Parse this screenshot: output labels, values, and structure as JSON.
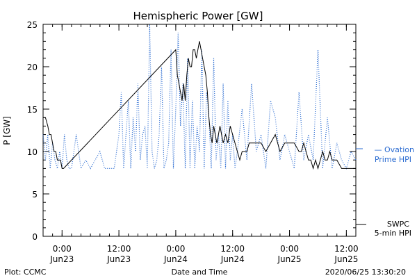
{
  "chart_data": {
    "type": "line",
    "title": "Hemispheric Power [GW]",
    "xlabel": "Date and Time",
    "ylabel": "P [GW]",
    "ylim": [
      0,
      25
    ],
    "yticks": [
      0,
      5,
      10,
      15,
      20,
      25
    ],
    "grid": false,
    "xlim": [
      "2020-06-22 20:00",
      "2020-06-25 14:00"
    ],
    "xticks": [
      {
        "t": "2020-06-23 00:00",
        "time": "0:00",
        "date": "Jun23"
      },
      {
        "t": "2020-06-23 12:00",
        "time": "12:00",
        "date": "Jun23"
      },
      {
        "t": "2020-06-24 00:00",
        "time": "0:00",
        "date": "Jun24"
      },
      {
        "t": "2020-06-24 12:00",
        "time": "12:00",
        "date": "Jun24"
      },
      {
        "t": "2020-06-25 00:00",
        "time": "0:00",
        "date": "Jun25"
      },
      {
        "t": "2020-06-25 12:00",
        "time": "12:00",
        "date": "Jun25"
      }
    ],
    "series": [
      {
        "name": "SWPC 5-min HPI",
        "legend_lines": [
          "SWPC",
          "5-min HPI"
        ],
        "color": "#000000",
        "style": "solid",
        "x": [
          "2020-06-22 20:00",
          "2020-06-22 20:30",
          "2020-06-22 21:00",
          "2020-06-22 21:20",
          "2020-06-22 21:40",
          "2020-06-22 22:00",
          "2020-06-22 22:20",
          "2020-06-22 22:40",
          "2020-06-22 23:00",
          "2020-06-22 23:20",
          "2020-06-22 23:40",
          "2020-06-23 00:00",
          "2020-06-23 00:20",
          "2020-06-24 00:00",
          "2020-06-24 00:20",
          "2020-06-24 00:40",
          "2020-06-24 01:00",
          "2020-06-24 01:20",
          "2020-06-24 01:40",
          "2020-06-24 02:00",
          "2020-06-24 02:20",
          "2020-06-24 02:40",
          "2020-06-24 03:00",
          "2020-06-24 03:20",
          "2020-06-24 03:40",
          "2020-06-24 04:00",
          "2020-06-24 04:20",
          "2020-06-24 04:40",
          "2020-06-24 05:00",
          "2020-06-24 05:20",
          "2020-06-24 05:40",
          "2020-06-24 06:00",
          "2020-06-24 06:20",
          "2020-06-24 06:40",
          "2020-06-24 07:00",
          "2020-06-24 07:20",
          "2020-06-24 07:40",
          "2020-06-24 08:00",
          "2020-06-24 08:20",
          "2020-06-24 08:40",
          "2020-06-24 09:00",
          "2020-06-24 09:20",
          "2020-06-24 09:40",
          "2020-06-24 10:00",
          "2020-06-24 10:30",
          "2020-06-24 11:00",
          "2020-06-24 11:30",
          "2020-06-24 12:00",
          "2020-06-24 12:30",
          "2020-06-24 13:00",
          "2020-06-24 13:30",
          "2020-06-24 14:00",
          "2020-06-24 14:30",
          "2020-06-24 15:00",
          "2020-06-24 15:30",
          "2020-06-24 16:00",
          "2020-06-24 17:00",
          "2020-06-24 18:00",
          "2020-06-24 19:00",
          "2020-06-24 20:00",
          "2020-06-24 21:00",
          "2020-06-24 22:00",
          "2020-06-24 23:00",
          "2020-06-25 00:00",
          "2020-06-25 01:00",
          "2020-06-25 02:00",
          "2020-06-25 02:30",
          "2020-06-25 03:00",
          "2020-06-25 03:30",
          "2020-06-25 04:00",
          "2020-06-25 04:30",
          "2020-06-25 05:00",
          "2020-06-25 05:30",
          "2020-06-25 06:00",
          "2020-06-25 06:30",
          "2020-06-25 07:00",
          "2020-06-25 07:30",
          "2020-06-25 08:00",
          "2020-06-25 08:30",
          "2020-06-25 09:00",
          "2020-06-25 10:00",
          "2020-06-25 11:00",
          "2020-06-25 12:00",
          "2020-06-25 13:00",
          "2020-06-25 14:00"
        ],
        "y": [
          14,
          14,
          13,
          12,
          12,
          11,
          10,
          10,
          9,
          9,
          9,
          8,
          8,
          22,
          19,
          18,
          17,
          16,
          18,
          16,
          19,
          21,
          20,
          20,
          22,
          22,
          21,
          22,
          23,
          22,
          21,
          20,
          19,
          17,
          14,
          12,
          11,
          13,
          12,
          11,
          12,
          13,
          12,
          11,
          12,
          11,
          13,
          12,
          11,
          10,
          9,
          10,
          10,
          10,
          11,
          11,
          11,
          11,
          10,
          11,
          12,
          10,
          11,
          11,
          11,
          10,
          10,
          11,
          10,
          9,
          9,
          8,
          9,
          8,
          9,
          10,
          9,
          9,
          10,
          9,
          9,
          8,
          8,
          8,
          8
        ]
      },
      {
        "name": "Ovation Prime HPI",
        "legend_lines": [
          "— Ovation",
          "Prime HPI"
        ],
        "color": "#2a6bd1",
        "style": "dotted",
        "x": [
          "2020-06-22 20:00",
          "2020-06-22 20:30",
          "2020-06-22 21:00",
          "2020-06-22 21:30",
          "2020-06-22 22:00",
          "2020-06-22 22:30",
          "2020-06-22 23:00",
          "2020-06-22 23:30",
          "2020-06-23 00:00",
          "2020-06-23 00:30",
          "2020-06-23 01:00",
          "2020-06-23 01:30",
          "2020-06-23 02:00",
          "2020-06-23 03:00",
          "2020-06-23 04:00",
          "2020-06-23 05:00",
          "2020-06-23 06:00",
          "2020-06-23 07:00",
          "2020-06-23 08:00",
          "2020-06-23 09:00",
          "2020-06-23 10:00",
          "2020-06-23 11:00",
          "2020-06-23 12:00",
          "2020-06-23 12:30",
          "2020-06-23 13:00",
          "2020-06-23 13:30",
          "2020-06-23 14:00",
          "2020-06-23 14:30",
          "2020-06-23 15:00",
          "2020-06-23 15:30",
          "2020-06-23 16:00",
          "2020-06-23 16:30",
          "2020-06-23 17:00",
          "2020-06-23 17:30",
          "2020-06-23 18:00",
          "2020-06-23 18:30",
          "2020-06-23 19:00",
          "2020-06-23 19:30",
          "2020-06-23 20:00",
          "2020-06-23 20:30",
          "2020-06-23 21:00",
          "2020-06-23 21:30",
          "2020-06-23 22:00",
          "2020-06-23 22:30",
          "2020-06-23 23:00",
          "2020-06-23 23:30",
          "2020-06-24 00:00",
          "2020-06-24 00:30",
          "2020-06-24 01:00",
          "2020-06-24 01:30",
          "2020-06-24 02:00",
          "2020-06-24 02:30",
          "2020-06-24 03:00",
          "2020-06-24 03:30",
          "2020-06-24 04:00",
          "2020-06-24 04:30",
          "2020-06-24 05:00",
          "2020-06-24 05:30",
          "2020-06-24 06:00",
          "2020-06-24 06:30",
          "2020-06-24 07:00",
          "2020-06-24 07:30",
          "2020-06-24 08:00",
          "2020-06-24 08:30",
          "2020-06-24 09:00",
          "2020-06-24 09:30",
          "2020-06-24 10:00",
          "2020-06-24 10:30",
          "2020-06-24 11:00",
          "2020-06-24 11:30",
          "2020-06-24 12:00",
          "2020-06-24 12:30",
          "2020-06-24 13:00",
          "2020-06-24 14:00",
          "2020-06-24 15:00",
          "2020-06-24 16:00",
          "2020-06-24 17:00",
          "2020-06-24 18:00",
          "2020-06-24 19:00",
          "2020-06-24 20:00",
          "2020-06-24 21:00",
          "2020-06-24 22:00",
          "2020-06-24 23:00",
          "2020-06-25 00:00",
          "2020-06-25 01:00",
          "2020-06-25 02:00",
          "2020-06-25 03:00",
          "2020-06-25 04:00",
          "2020-06-25 05:00",
          "2020-06-25 06:00",
          "2020-06-25 07:00",
          "2020-06-25 08:00",
          "2020-06-25 09:00",
          "2020-06-25 10:00",
          "2020-06-25 11:00",
          "2020-06-25 12:00",
          "2020-06-25 13:00",
          "2020-06-25 14:00"
        ],
        "y": [
          12,
          9,
          12,
          8,
          11,
          9,
          8,
          10,
          8,
          12,
          9,
          8,
          8,
          12,
          8,
          9,
          8,
          9,
          10,
          8,
          8,
          8,
          12,
          17,
          8,
          12,
          16,
          8,
          14,
          10,
          18,
          9,
          12,
          13,
          8,
          25,
          10,
          8,
          9,
          12,
          20,
          8,
          9,
          11,
          22,
          8,
          15,
          24,
          13,
          18,
          8,
          21,
          8,
          16,
          8,
          13,
          10,
          22,
          8,
          17,
          14,
          8,
          21,
          9,
          12,
          8,
          18,
          8,
          16,
          9,
          12,
          8,
          10,
          15,
          9,
          18,
          10,
          12,
          8,
          16,
          14,
          9,
          12,
          10,
          8,
          17,
          9,
          12,
          9,
          22,
          8,
          14,
          8,
          11,
          9,
          8,
          10,
          9
        ]
      }
    ],
    "annotations": {
      "bottom_left": "Plot: CCMC",
      "bottom_right": "2020/06/25 13:30:20"
    }
  }
}
